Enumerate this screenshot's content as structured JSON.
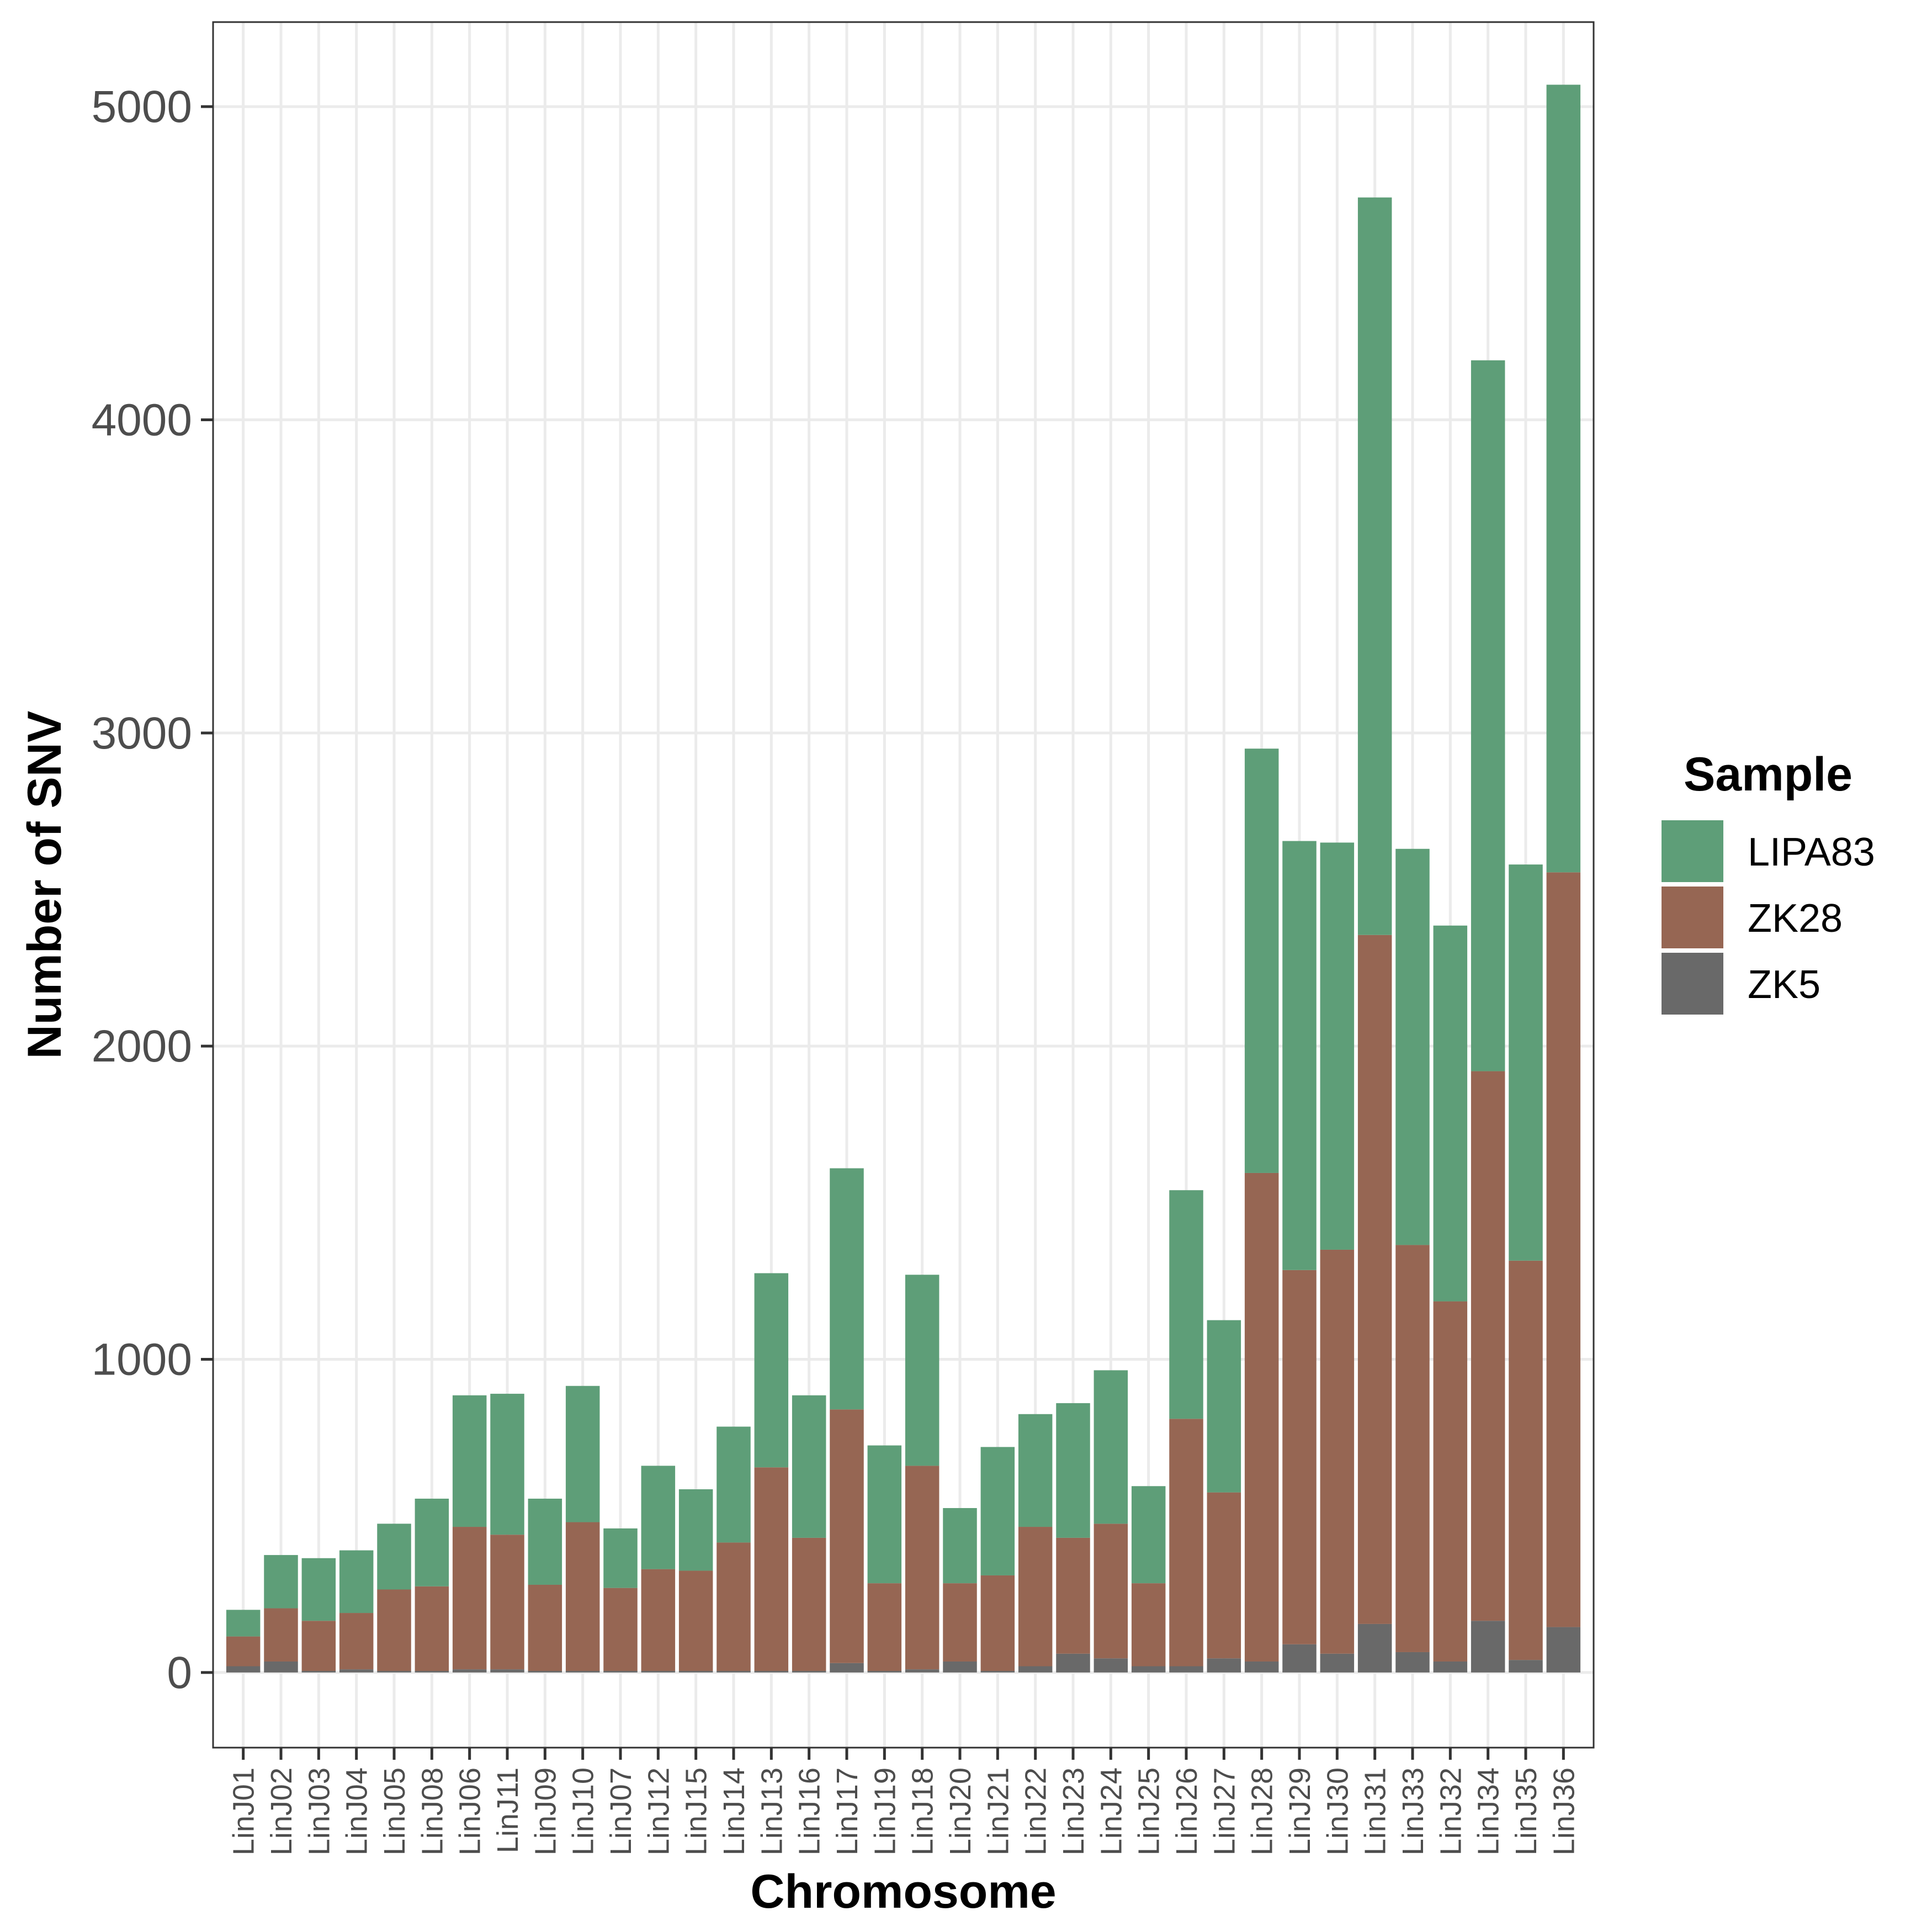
{
  "chart_data": {
    "type": "bar",
    "stacked": true,
    "xlabel": "Chromosome",
    "ylabel": "Number of SNV",
    "ylim": [
      -240,
      5270
    ],
    "yticks": [
      0,
      1000,
      2000,
      3000,
      4000,
      5000
    ],
    "grid": true,
    "legend": {
      "title": "Sample",
      "placement": "right"
    },
    "categories": [
      "LinJ01",
      "LinJ02",
      "LinJ03",
      "LinJ04",
      "LinJ05",
      "LinJ08",
      "LinJ06",
      "LinJ11",
      "LinJ09",
      "LinJ10",
      "LinJ07",
      "LinJ12",
      "LinJ15",
      "LinJ14",
      "LinJ13",
      "LinJ16",
      "LinJ17",
      "LinJ19",
      "LinJ18",
      "LinJ20",
      "LinJ21",
      "LinJ22",
      "LinJ23",
      "LinJ24",
      "LinJ25",
      "LinJ26",
      "LinJ27",
      "LinJ28",
      "LinJ29",
      "LinJ30",
      "LinJ31",
      "LinJ33",
      "LinJ32",
      "LinJ34",
      "LinJ35",
      "LinJ36"
    ],
    "series": [
      {
        "name": "ZK5",
        "color": "#696969",
        "values": [
          20,
          35,
          5,
          10,
          5,
          5,
          10,
          10,
          5,
          5,
          5,
          5,
          5,
          5,
          5,
          5,
          30,
          5,
          10,
          35,
          5,
          20,
          60,
          45,
          20,
          20,
          45,
          35,
          90,
          60,
          155,
          65,
          35,
          165,
          40,
          145
        ]
      },
      {
        "name": "ZK28",
        "color": "#966653",
        "values": [
          95,
          170,
          160,
          180,
          260,
          270,
          455,
          430,
          275,
          475,
          265,
          325,
          320,
          410,
          650,
          425,
          810,
          280,
          650,
          250,
          305,
          445,
          370,
          430,
          265,
          790,
          530,
          1560,
          1195,
          1290,
          2200,
          1300,
          1150,
          1755,
          1275,
          2410
        ]
      },
      {
        "name": "LIPA83",
        "color": "#5e9e78",
        "values": [
          85,
          170,
          200,
          200,
          210,
          280,
          420,
          450,
          275,
          435,
          190,
          330,
          260,
          370,
          620,
          455,
          770,
          440,
          610,
          240,
          410,
          360,
          430,
          490,
          310,
          730,
          550,
          1355,
          1370,
          1300,
          2355,
          1265,
          1200,
          2270,
          1265,
          2515
        ]
      }
    ],
    "legend_order": [
      "LIPA83",
      "ZK28",
      "ZK5"
    ]
  }
}
